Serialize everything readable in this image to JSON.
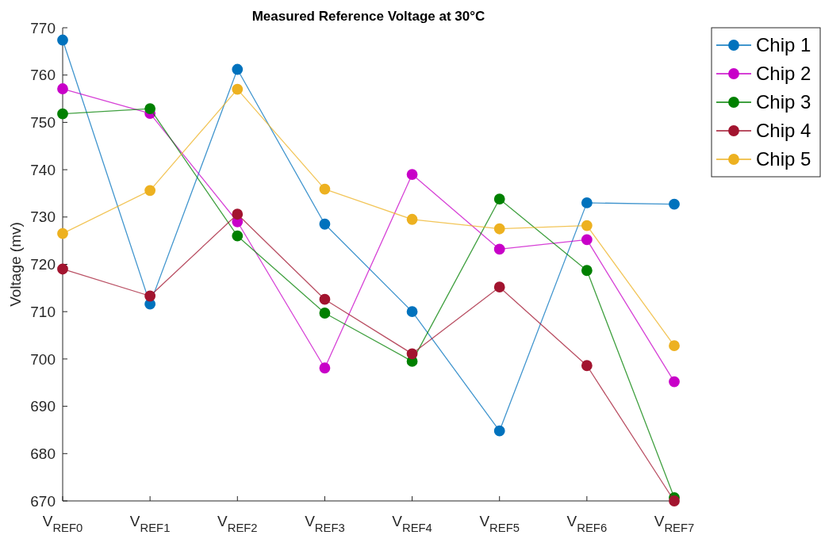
{
  "chart_data": {
    "type": "line",
    "title": "Measured Reference Voltage at 30°C",
    "ylabel": "Voltage (mv)",
    "categories": [
      "V$_{REF0}$",
      "V$_{REF1}$",
      "V$_{REF2}$",
      "V$_{REF3}$",
      "V$_{REF4}$",
      "V$_{REF5}$",
      "V$_{REF6}$",
      "V$_{REF7}$"
    ],
    "series": [
      {
        "name": "Chip 1",
        "color": "#0072bd",
        "values": [
          767.4,
          711.6,
          761.2,
          728.5,
          710,
          684.8,
          733,
          732.7
        ]
      },
      {
        "name": "Chip 2",
        "color": "#c800c8",
        "values": [
          757.1,
          751.9,
          729,
          698.1,
          739,
          723.2,
          725.2,
          695.2
        ]
      },
      {
        "name": "Chip 3",
        "color": "#008000",
        "values": [
          751.8,
          752.9,
          726,
          709.7,
          699.5,
          733.8,
          718.7,
          670.7
        ]
      },
      {
        "name": "Chip 4",
        "color": "#a2142f",
        "values": [
          719,
          713.3,
          730.6,
          712.6,
          701.1,
          715.2,
          698.6,
          670
        ]
      },
      {
        "name": "Chip 5",
        "color": "#edb120",
        "values": [
          726.5,
          735.6,
          757,
          735.9,
          729.5,
          727.5,
          728.2,
          702.8
        ]
      }
    ],
    "ylim": [
      670,
      770
    ],
    "yticks": [
      670,
      680,
      690,
      700,
      710,
      720,
      730,
      740,
      750,
      760,
      770
    ],
    "marker": "circle",
    "legend": "top right",
    "grid": false
  }
}
